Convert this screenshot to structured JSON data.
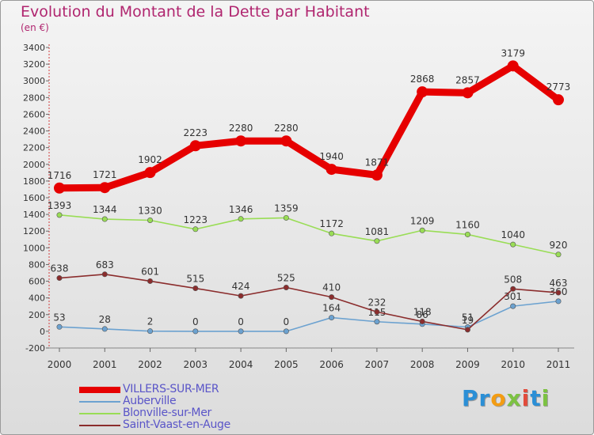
{
  "title": "Evolution du Montant de la Dette par Habitant",
  "subtitle": "(en €)",
  "brand": "Proxiti",
  "colors": {
    "title": "#b0256f",
    "legend_text": "#5a55c8",
    "VILLERS-SUR-MER": "#e60000",
    "Auberville": "#6ca2d0",
    "Blonville-sur-Mer": "#99dd55",
    "Saint-Vaast-en-Auge": "#8b2d2d"
  },
  "chart_data": {
    "type": "line",
    "title": "Evolution du Montant de la Dette par Habitant",
    "subtitle": "(en €)",
    "xlabel": "",
    "ylabel": "",
    "x": [
      "2000",
      "2001",
      "2002",
      "2003",
      "2004",
      "2005",
      "2006",
      "2007",
      "2008",
      "2009",
      "2010",
      "2011"
    ],
    "ylim": [
      -200,
      3400
    ],
    "yticks": [
      -200,
      0,
      200,
      400,
      600,
      800,
      1000,
      1200,
      1400,
      1600,
      1800,
      2000,
      2200,
      2400,
      2600,
      2800,
      3000,
      3200,
      3400
    ],
    "grid": false,
    "legend": "bottom-left",
    "series": [
      {
        "name": "VILLERS-SUR-MER",
        "values": [
          1716,
          1721,
          1902,
          2223,
          2280,
          2280,
          1940,
          1871,
          2868,
          2857,
          3179,
          2773
        ],
        "labels": [
          "1716",
          "1721",
          "1902",
          "2223",
          "2280",
          "2280",
          "1940",
          "1871",
          "2868",
          "2857",
          "3179",
          "2773"
        ]
      },
      {
        "name": "Auberville",
        "values": [
          53,
          28,
          2,
          0,
          0,
          0,
          164,
          115,
          86,
          51,
          301,
          360
        ],
        "labels": [
          "53",
          "28",
          "2",
          "0",
          "0",
          "0",
          "164",
          "115",
          "86",
          "51",
          "301",
          "360"
        ]
      },
      {
        "name": "Blonville-sur-Mer",
        "values": [
          1393,
          1344,
          1330,
          1223,
          1346,
          1359,
          1172,
          1081,
          1209,
          1160,
          1040,
          920
        ],
        "labels": [
          "1393",
          "1344",
          "1330",
          "1223",
          "1346",
          "1359",
          "1172",
          "1081",
          "1209",
          "1160",
          "1040",
          "920"
        ]
      },
      {
        "name": "Saint-Vaast-en-Auge",
        "values": [
          638,
          683,
          601,
          515,
          424,
          525,
          410,
          232,
          118,
          19,
          508,
          463
        ],
        "labels": [
          "638",
          "683",
          "601",
          "515",
          "424",
          "525",
          "410",
          "232",
          "118",
          "19",
          "508",
          "463"
        ]
      }
    ]
  }
}
